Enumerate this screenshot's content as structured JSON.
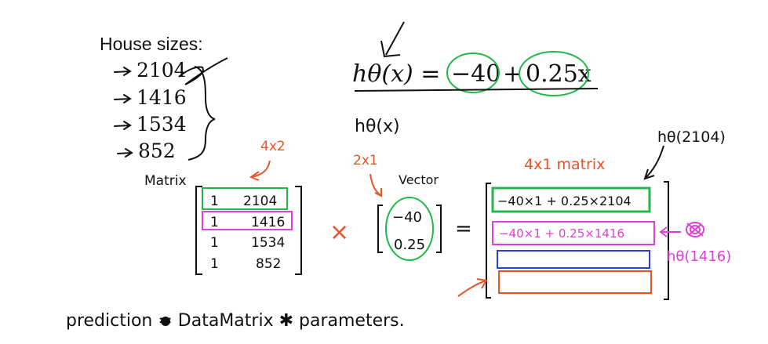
{
  "slide": {
    "heading": "House sizes:",
    "sizes": [
      "2104",
      "1416",
      "1534",
      "852"
    ],
    "hypothesis": {
      "lhs": "hθ(x) =",
      "intercept": "−40",
      "plus": "+",
      "slope": "0.25x"
    },
    "hypothesis_handwritten": "hθ(x)",
    "annotations": {
      "dim_matrix": "4x2",
      "matrix_label": "Matrix",
      "dim_vector": "2x1",
      "vector_label": "Vector",
      "result_label": "4x1 matrix",
      "h_2104": "hθ(2104)",
      "h_1416": "hθ(1416)"
    },
    "matrix_rows": [
      {
        "one": "1",
        "size": "2104"
      },
      {
        "one": "1",
        "size": "1416"
      },
      {
        "one": "1",
        "size": "1534"
      },
      {
        "one": "1",
        "size": "852"
      }
    ],
    "times": "×",
    "vector": [
      "−40",
      "0.25"
    ],
    "equals": "=",
    "result_rows": [
      "−40×1 + 0.25×2104",
      "−40×1 + 0.25×1416",
      "",
      ""
    ],
    "prediction_formula": "prediction = DataMatrix ✱ parameters."
  },
  "colors": {
    "ink": "#111111",
    "green": "#22b84a",
    "magenta": "#e040d6",
    "orange": "#e8542a",
    "blue": "#2a3fd8"
  }
}
